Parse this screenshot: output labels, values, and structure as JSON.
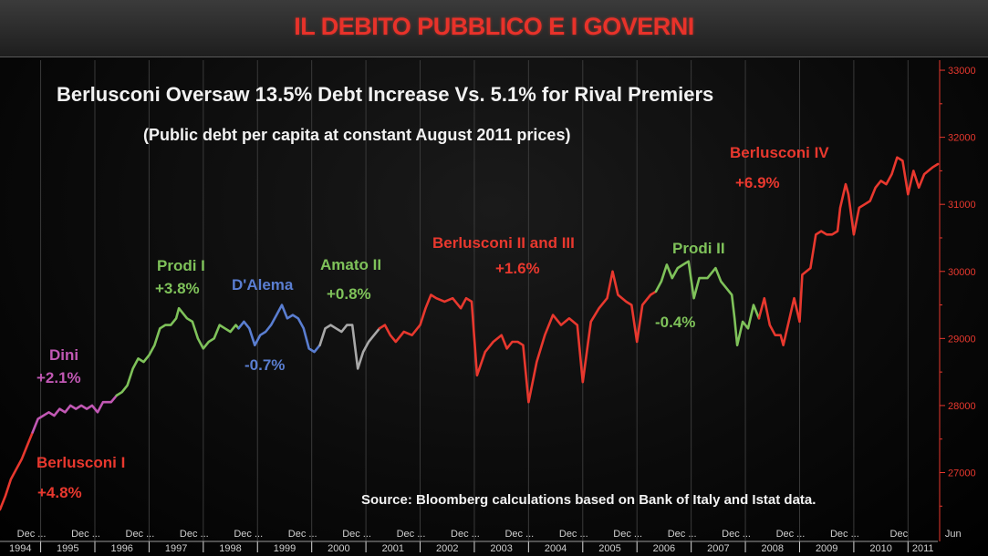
{
  "banner": {
    "title": "IL DEBITO PUBBLICO E I GOVERNI"
  },
  "chart_data": {
    "type": "line",
    "title": "Berlusconi Oversaw 13.5% Debt Increase Vs. 5.1% for Rival Premiers",
    "subtitle": "(Public debt per capita at constant August 2011 prices)",
    "source": "Source: Bloomberg calculations based on Bank of Italy and Istat data.",
    "y_axis": {
      "side": "right",
      "range": [
        26300,
        33150
      ],
      "ticks": [
        27000,
        28000,
        29000,
        30000,
        31000,
        32000,
        33000
      ],
      "tick_labels": [
        "27000",
        "28000",
        "29000",
        "30000",
        "31000",
        "32000",
        "33000"
      ],
      "color": "#e8382e"
    },
    "x_axis": {
      "range": [
        1994.25,
        2011.55
      ],
      "years": [
        "1994",
        "1995",
        "1996",
        "1997",
        "1998",
        "1999",
        "2000",
        "2001",
        "2002",
        "2003",
        "2004",
        "2005",
        "2006",
        "2007",
        "2008",
        "2009",
        "2010",
        "2011"
      ],
      "month_labels": [
        "Dec ...",
        "Dec ...",
        "Dec ...",
        "Dec ...",
        "Dec ...",
        "Dec ...",
        "Dec ...",
        "Dec ...",
        "Dec ...",
        "Dec ...",
        "Dec ...",
        "Dec ...",
        "Dec ...",
        "Dec ...",
        "Dec ...",
        "Dec ...",
        "Dec",
        "Jun"
      ]
    },
    "grid": {
      "vertical": true,
      "horizontal": false
    },
    "series": [
      {
        "name": "Berlusconi I",
        "change": "+4.8%",
        "color": "#e8382e",
        "points": [
          [
            1994.25,
            26450
          ],
          [
            1994.35,
            26650
          ],
          [
            1994.45,
            26900
          ],
          [
            1994.55,
            27050
          ],
          [
            1994.65,
            27200
          ],
          [
            1994.75,
            27400
          ],
          [
            1994.85,
            27600
          ]
        ]
      },
      {
        "name": "Dini",
        "change": "+2.1%",
        "color": "#c158b4",
        "points": [
          [
            1994.85,
            27600
          ],
          [
            1994.95,
            27800
          ],
          [
            1995.05,
            27850
          ],
          [
            1995.15,
            27900
          ],
          [
            1995.25,
            27850
          ],
          [
            1995.35,
            27950
          ],
          [
            1995.45,
            27900
          ],
          [
            1995.55,
            28000
          ],
          [
            1995.65,
            27950
          ],
          [
            1995.75,
            28000
          ],
          [
            1995.85,
            27950
          ],
          [
            1995.95,
            28000
          ],
          [
            1996.05,
            27900
          ],
          [
            1996.15,
            28050
          ],
          [
            1996.3,
            28050
          ],
          [
            1996.4,
            28150
          ]
        ]
      },
      {
        "name": "Prodi I",
        "change": "+3.8%",
        "color": "#7fc25a",
        "points": [
          [
            1996.4,
            28150
          ],
          [
            1996.5,
            28200
          ],
          [
            1996.6,
            28300
          ],
          [
            1996.7,
            28550
          ],
          [
            1996.8,
            28700
          ],
          [
            1996.9,
            28650
          ],
          [
            1997.0,
            28750
          ],
          [
            1997.1,
            28900
          ],
          [
            1997.2,
            29150
          ],
          [
            1997.3,
            29200
          ],
          [
            1997.4,
            29200
          ],
          [
            1997.5,
            29300
          ],
          [
            1997.55,
            29450
          ],
          [
            1997.7,
            29300
          ],
          [
            1997.8,
            29250
          ],
          [
            1997.9,
            29000
          ],
          [
            1998.0,
            28850
          ],
          [
            1998.1,
            28950
          ],
          [
            1998.2,
            29000
          ],
          [
            1998.3,
            29200
          ],
          [
            1998.4,
            29150
          ],
          [
            1998.5,
            29100
          ],
          [
            1998.6,
            29200
          ],
          [
            1998.65,
            29150
          ]
        ]
      },
      {
        "name": "D'Alema",
        "change": "-0.7%",
        "color": "#5a7ed1",
        "points": [
          [
            1998.65,
            29150
          ],
          [
            1998.75,
            29250
          ],
          [
            1998.85,
            29150
          ],
          [
            1998.95,
            28900
          ],
          [
            1999.05,
            29050
          ],
          [
            1999.15,
            29100
          ],
          [
            1999.25,
            29200
          ],
          [
            1999.35,
            29350
          ],
          [
            1999.45,
            29500
          ],
          [
            1999.55,
            29300
          ],
          [
            1999.65,
            29350
          ],
          [
            1999.75,
            29300
          ],
          [
            1999.85,
            29150
          ],
          [
            1999.95,
            28850
          ],
          [
            2000.05,
            28800
          ],
          [
            2000.15,
            28900
          ]
        ]
      },
      {
        "name": "Amato II",
        "change": "+0.8%",
        "color": "#a8a8a8",
        "points": [
          [
            2000.15,
            28900
          ],
          [
            2000.25,
            29150
          ],
          [
            2000.35,
            29200
          ],
          [
            2000.45,
            29150
          ],
          [
            2000.55,
            29100
          ],
          [
            2000.65,
            29200
          ],
          [
            2000.75,
            29200
          ],
          [
            2000.85,
            28550
          ],
          [
            2000.95,
            28800
          ],
          [
            2001.05,
            28950
          ],
          [
            2001.15,
            29050
          ],
          [
            2001.25,
            29150
          ]
        ]
      },
      {
        "name": "Berlusconi II and III",
        "change": "+1.6%",
        "color": "#e8382e",
        "points": [
          [
            2001.25,
            29150
          ],
          [
            2001.35,
            29200
          ],
          [
            2001.45,
            29050
          ],
          [
            2001.55,
            28950
          ],
          [
            2001.7,
            29100
          ],
          [
            2001.85,
            29050
          ],
          [
            2002.0,
            29200
          ],
          [
            2002.1,
            29450
          ],
          [
            2002.2,
            29650
          ],
          [
            2002.3,
            29600
          ],
          [
            2002.45,
            29550
          ],
          [
            2002.6,
            29600
          ],
          [
            2002.75,
            29450
          ],
          [
            2002.85,
            29600
          ],
          [
            2002.95,
            29550
          ],
          [
            2003.05,
            28450
          ],
          [
            2003.2,
            28800
          ],
          [
            2003.35,
            28950
          ],
          [
            2003.5,
            29050
          ],
          [
            2003.6,
            28850
          ],
          [
            2003.7,
            28950
          ],
          [
            2003.8,
            28950
          ],
          [
            2003.9,
            28900
          ],
          [
            2004.0,
            28050
          ],
          [
            2004.15,
            28650
          ],
          [
            2004.3,
            29050
          ],
          [
            2004.45,
            29350
          ],
          [
            2004.6,
            29200
          ],
          [
            2004.75,
            29300
          ],
          [
            2004.9,
            29200
          ],
          [
            2005.0,
            28350
          ],
          [
            2005.15,
            29250
          ],
          [
            2005.3,
            29450
          ],
          [
            2005.45,
            29600
          ],
          [
            2005.55,
            30000
          ],
          [
            2005.65,
            29650
          ],
          [
            2005.8,
            29550
          ],
          [
            2005.9,
            29500
          ],
          [
            2006.0,
            28950
          ],
          [
            2006.1,
            29500
          ],
          [
            2006.25,
            29650
          ],
          [
            2006.35,
            29700
          ]
        ]
      },
      {
        "name": "Prodi II",
        "change": "-0.4%",
        "color": "#7fc25a",
        "points": [
          [
            2006.35,
            29700
          ],
          [
            2006.45,
            29850
          ],
          [
            2006.55,
            30100
          ],
          [
            2006.65,
            29900
          ],
          [
            2006.75,
            30050
          ],
          [
            2006.85,
            30100
          ],
          [
            2006.95,
            30150
          ],
          [
            2007.05,
            29600
          ],
          [
            2007.15,
            29900
          ],
          [
            2007.3,
            29900
          ],
          [
            2007.45,
            30050
          ],
          [
            2007.55,
            29850
          ],
          [
            2007.65,
            29750
          ],
          [
            2007.75,
            29650
          ],
          [
            2007.8,
            29300
          ],
          [
            2007.85,
            28900
          ],
          [
            2007.95,
            29250
          ],
          [
            2008.05,
            29150
          ],
          [
            2008.15,
            29500
          ],
          [
            2008.25,
            29300
          ]
        ]
      },
      {
        "name": "Berlusconi IV",
        "change": "+6.9%",
        "color": "#e8382e",
        "points": [
          [
            2008.25,
            29300
          ],
          [
            2008.35,
            29600
          ],
          [
            2008.45,
            29200
          ],
          [
            2008.55,
            29050
          ],
          [
            2008.65,
            29050
          ],
          [
            2008.7,
            28900
          ],
          [
            2008.8,
            29250
          ],
          [
            2008.9,
            29600
          ],
          [
            2009.0,
            29250
          ],
          [
            2009.05,
            29950
          ],
          [
            2009.2,
            30050
          ],
          [
            2009.3,
            30550
          ],
          [
            2009.4,
            30600
          ],
          [
            2009.5,
            30550
          ],
          [
            2009.6,
            30550
          ],
          [
            2009.7,
            30600
          ],
          [
            2009.75,
            30950
          ],
          [
            2009.85,
            31300
          ],
          [
            2009.9,
            31150
          ],
          [
            2010.0,
            30550
          ],
          [
            2010.1,
            30950
          ],
          [
            2010.2,
            31000
          ],
          [
            2010.3,
            31050
          ],
          [
            2010.4,
            31250
          ],
          [
            2010.5,
            31350
          ],
          [
            2010.6,
            31300
          ],
          [
            2010.7,
            31450
          ],
          [
            2010.8,
            31700
          ],
          [
            2010.9,
            31650
          ],
          [
            2011.0,
            31150
          ],
          [
            2011.1,
            31500
          ],
          [
            2011.2,
            31250
          ],
          [
            2011.3,
            31450
          ],
          [
            2011.45,
            31550
          ],
          [
            2011.55,
            31600
          ]
        ]
      }
    ]
  }
}
